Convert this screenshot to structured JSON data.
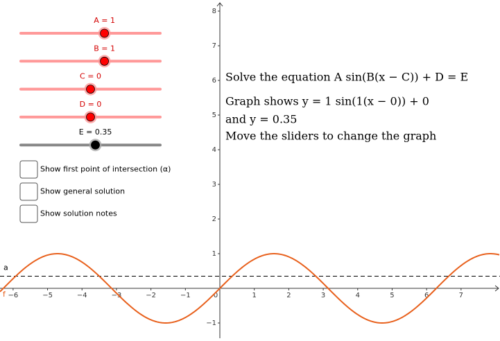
{
  "sliders": [
    {
      "label": "A = 1",
      "value": 1,
      "range": [
        -5,
        5
      ],
      "color": "#ff0000"
    },
    {
      "label": "B = 1",
      "value": 1,
      "range": [
        -5,
        5
      ],
      "color": "#ff0000"
    },
    {
      "label": "C = 0",
      "value": 0,
      "range": [
        -5,
        5
      ],
      "color": "#ff0000"
    },
    {
      "label": "D = 0",
      "value": 0,
      "range": [
        -5,
        5
      ],
      "color": "#ff0000"
    },
    {
      "label": "E = 0.35",
      "value": 0.35,
      "range": [
        -5,
        5
      ],
      "color": "#000000"
    }
  ],
  "checkboxes": [
    {
      "label": "Show first point of intersection (α)",
      "checked": false
    },
    {
      "label": "Show general solution",
      "checked": false
    },
    {
      "label": "Show solution notes",
      "checked": false
    }
  ],
  "text": [
    "Solve the equation A sin(B(x − C)) + D = E",
    "Graph shows y = 1 sin(1(x − 0)) + 0",
    "and y = 0.35",
    "Move the sliders to change the graph"
  ],
  "graph": {
    "xlim": [
      -6.38,
      8.13
    ],
    "ylim": [
      -1.44,
      8.32
    ],
    "xticks": [
      {
        "value": -6,
        "label": "−6"
      },
      {
        "value": -5,
        "label": "−5"
      },
      {
        "value": -4,
        "label": "−4"
      },
      {
        "value": -3,
        "label": "−3"
      },
      {
        "value": -2,
        "label": "−2"
      },
      {
        "value": -1,
        "label": "−1"
      },
      0,
      1,
      2,
      3,
      4,
      5,
      6,
      7
    ],
    "yticks": [
      {
        "value": -1,
        "label": "−1"
      },
      1,
      2,
      3,
      4,
      5,
      6,
      7,
      8
    ],
    "function_label": "f",
    "line_label": "a",
    "function_color": "#e8601c",
    "line_color": "#000000"
  }
}
